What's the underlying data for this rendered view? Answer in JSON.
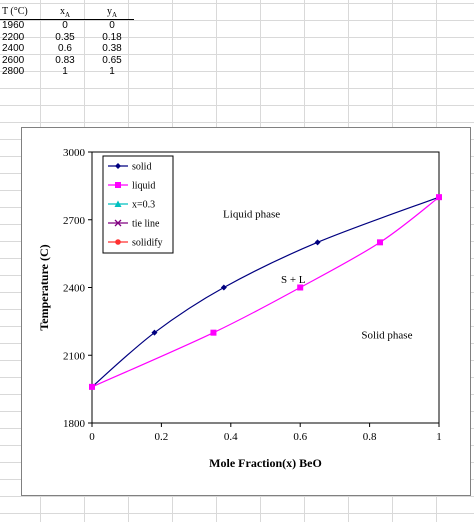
{
  "table": {
    "headers": [
      "T (°C)",
      "x_A",
      "y_A"
    ],
    "rows": [
      [
        "1960",
        "0",
        "0"
      ],
      [
        "2200",
        "0.35",
        "0.18"
      ],
      [
        "2400",
        "0.6",
        "0.38"
      ],
      [
        "2600",
        "0.83",
        "0.65"
      ],
      [
        "2800",
        "1",
        "1"
      ]
    ]
  },
  "chart_data": {
    "type": "line",
    "xlabel": "Mole Fraction(x) BeO",
    "ylabel": "Temperature (C)",
    "xlim": [
      0,
      1
    ],
    "ylim": [
      1800,
      3000
    ],
    "x_ticks": [
      "0",
      "0.2",
      "0.4",
      "0.6",
      "0.8",
      "1"
    ],
    "y_ticks": [
      "1800",
      "2100",
      "2400",
      "2700",
      "3000"
    ],
    "grid": false,
    "legend_placement": "top-left",
    "series": [
      {
        "name": "solid",
        "color": "#000080",
        "marker": "diamond",
        "points": [
          [
            0,
            1960
          ],
          [
            0.18,
            2200
          ],
          [
            0.38,
            2400
          ],
          [
            0.65,
            2600
          ],
          [
            1,
            2800
          ]
        ]
      },
      {
        "name": "liquid",
        "color": "#ff00ff",
        "marker": "square",
        "points": [
          [
            0,
            1960
          ],
          [
            0.35,
            2200
          ],
          [
            0.6,
            2400
          ],
          [
            0.83,
            2600
          ],
          [
            1,
            2800
          ]
        ]
      },
      {
        "name": "x=0.3",
        "color": "#00c0c0",
        "marker": "triangle",
        "points": []
      },
      {
        "name": "tie line",
        "color": "#800080",
        "marker": "x",
        "points": []
      },
      {
        "name": "solidify",
        "color": "#ff3030",
        "marker": "circle",
        "points": []
      }
    ],
    "annotations": [
      {
        "text": "Liquid phase",
        "x": 0.46,
        "y": 2710
      },
      {
        "text": "S + L",
        "x": 0.58,
        "y": 2420
      },
      {
        "text": "Solid phase",
        "x": 0.85,
        "y": 2175
      }
    ]
  }
}
